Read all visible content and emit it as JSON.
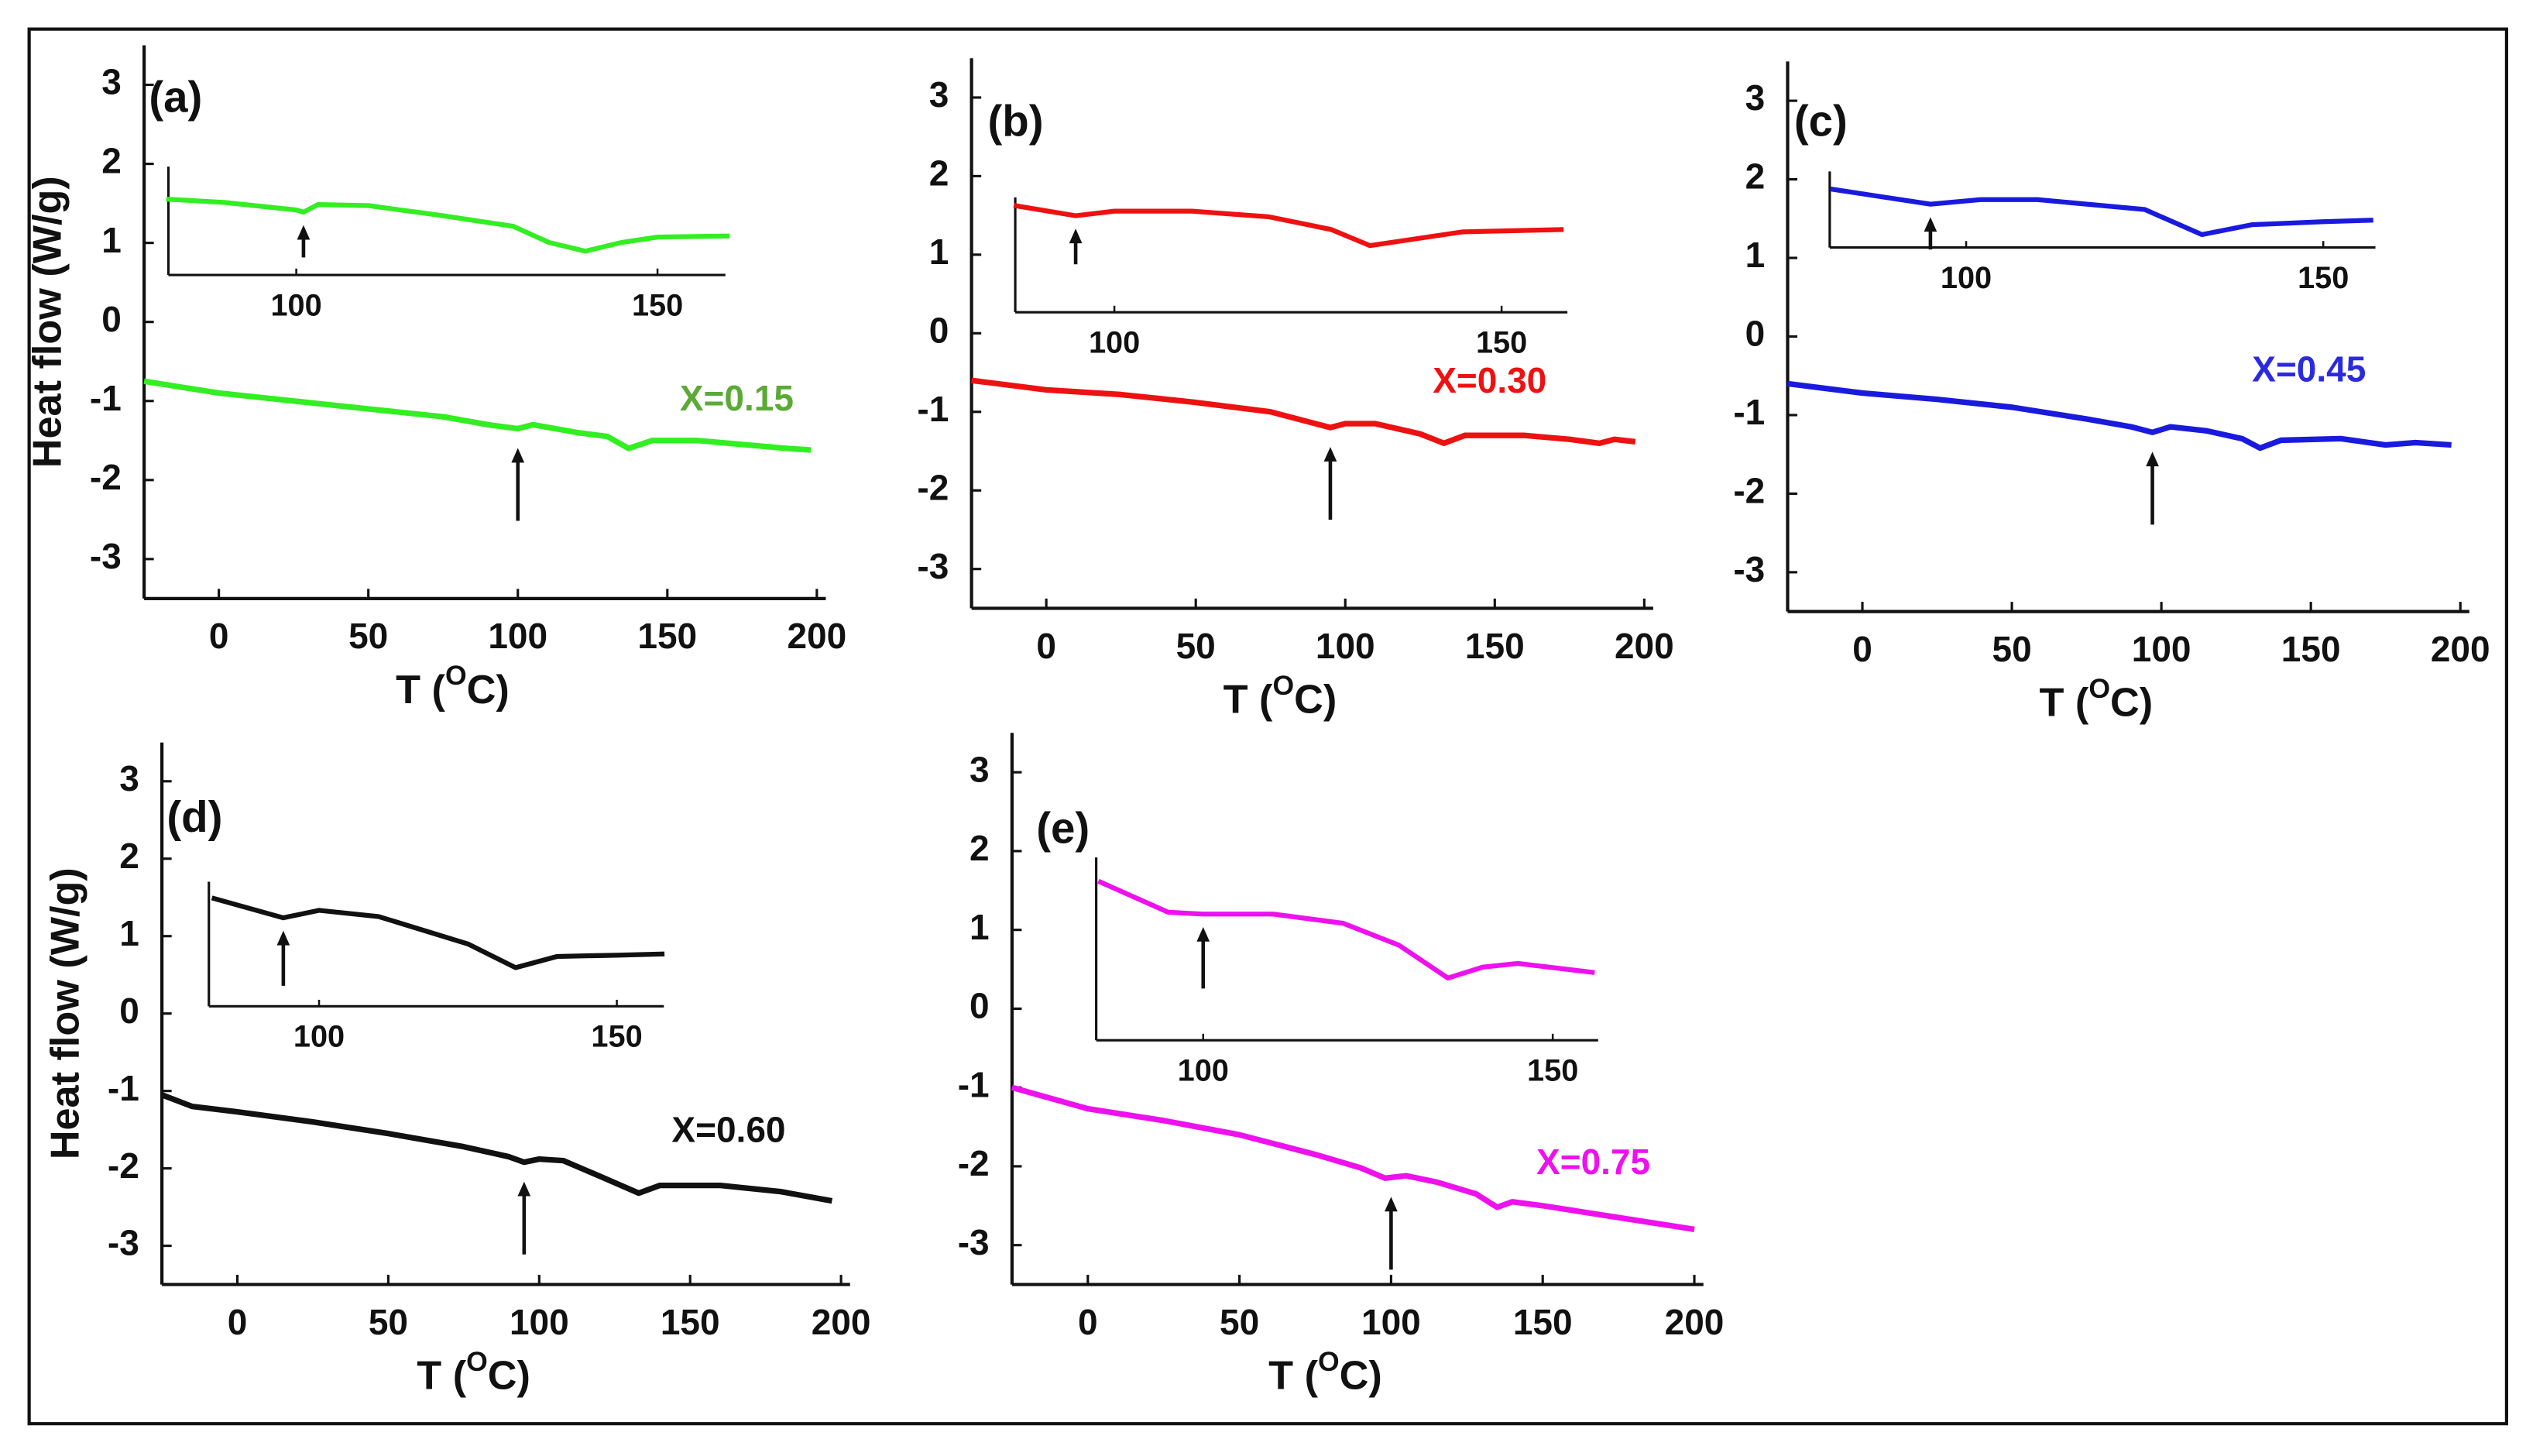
{
  "chart_data": [
    {
      "type": "line",
      "label": "(a)",
      "annotation": "X=0.15",
      "annotation_color": "#5aaa35",
      "y_label": "Heat flow (W/g)",
      "x_label": [
        "T (",
        "O",
        "C)"
      ],
      "xlim": [
        -25,
        203
      ],
      "ylim": [
        -3.5,
        3.5
      ],
      "xticks": [
        0,
        50,
        100,
        150,
        200
      ],
      "yticks": [
        -3,
        -2,
        -1,
        0,
        1,
        2,
        3
      ],
      "series": [
        {
          "color": "#33ee22",
          "x": [
            -25,
            0,
            25,
            50,
            75,
            90,
            100,
            105,
            120,
            130,
            137,
            145,
            160,
            175,
            190,
            198
          ],
          "values": [
            -0.75,
            -0.9,
            -1.0,
            -1.1,
            -1.2,
            -1.3,
            -1.35,
            -1.3,
            -1.4,
            -1.45,
            -1.6,
            -1.5,
            -1.5,
            -1.55,
            -1.6,
            -1.62
          ]
        }
      ],
      "marker_x": 100,
      "inset": {
        "xlim": [
          82.3,
          159.4
        ],
        "ylim": [
          0,
          1
        ],
        "xticks": [
          100,
          150
        ],
        "x": [
          82,
          90,
          100,
          101,
          103,
          110,
          120,
          130,
          135,
          140,
          145,
          150,
          160
        ],
        "values": [
          0.7,
          0.67,
          0.6,
          0.58,
          0.65,
          0.64,
          0.55,
          0.45,
          0.3,
          0.22,
          0.3,
          0.35,
          0.36
        ],
        "marker_x": 101
      }
    },
    {
      "type": "line",
      "label": "(b)",
      "annotation": "X=0.30",
      "annotation_color": "#ee1111",
      "x_label": [
        "T (",
        "O",
        "C)"
      ],
      "xlim": [
        -25,
        203
      ],
      "ylim": [
        -3.5,
        3.5
      ],
      "xticks": [
        0,
        50,
        100,
        150,
        200
      ],
      "yticks": [
        -3,
        -2,
        -1,
        0,
        1,
        2,
        3
      ],
      "series": [
        {
          "color": "#ee1111",
          "x": [
            -25,
            0,
            25,
            50,
            75,
            90,
            95,
            100,
            110,
            125,
            133,
            140,
            160,
            175,
            185,
            190,
            197
          ],
          "values": [
            -0.6,
            -0.72,
            -0.78,
            -0.88,
            -1.0,
            -1.15,
            -1.2,
            -1.15,
            -1.15,
            -1.28,
            -1.4,
            -1.3,
            -1.3,
            -1.35,
            -1.4,
            -1.35,
            -1.38
          ]
        }
      ],
      "marker_x": 95,
      "inset": {
        "xlim": [
          87.2,
          158.5
        ],
        "ylim": [
          0,
          1
        ],
        "xticks": [
          100,
          150
        ],
        "x": [
          87,
          95,
          100,
          110,
          120,
          128,
          133,
          137,
          145,
          158
        ],
        "values": [
          0.93,
          0.84,
          0.88,
          0.88,
          0.83,
          0.72,
          0.58,
          0.62,
          0.7,
          0.72
        ],
        "marker_x": 95
      }
    },
    {
      "type": "line",
      "label": "(c)",
      "annotation": "X=0.45",
      "annotation_color": "#2a2ae0",
      "x_label": [
        "T (",
        "O",
        "C)"
      ],
      "xlim": [
        -25,
        203
      ],
      "ylim": [
        -3.5,
        3.5
      ],
      "xticks": [
        0,
        50,
        100,
        150,
        200
      ],
      "yticks": [
        -3,
        -2,
        -1,
        0,
        1,
        2,
        3
      ],
      "series": [
        {
          "color": "#1a1adf",
          "x": [
            -25,
            0,
            25,
            50,
            75,
            90,
            97,
            103,
            115,
            127,
            133,
            140,
            160,
            175,
            185,
            197
          ],
          "values": [
            -0.6,
            -0.72,
            -0.8,
            -0.9,
            -1.05,
            -1.15,
            -1.22,
            -1.15,
            -1.2,
            -1.3,
            -1.42,
            -1.32,
            -1.3,
            -1.38,
            -1.35,
            -1.38
          ]
        }
      ],
      "marker_x": 97,
      "inset": {
        "xlim": [
          80.9,
          157.3
        ],
        "ylim": [
          0,
          1
        ],
        "xticks": [
          100,
          150
        ],
        "x": [
          81,
          95,
          102,
          110,
          125,
          133,
          140,
          150,
          157
        ],
        "values": [
          0.77,
          0.57,
          0.63,
          0.63,
          0.5,
          0.17,
          0.3,
          0.34,
          0.36
        ],
        "marker_x": 95
      }
    },
    {
      "type": "line",
      "label": "(d)",
      "annotation": "X=0.60",
      "annotation_color": "#111111",
      "y_label": "Heat flow (W/g)",
      "x_label": [
        "T (",
        "O",
        "C)"
      ],
      "xlim": [
        -25,
        203
      ],
      "ylim": [
        -3.5,
        3.5
      ],
      "xticks": [
        0,
        50,
        100,
        150,
        200
      ],
      "yticks": [
        -3,
        -2,
        -1,
        0,
        1,
        2,
        3
      ],
      "series": [
        {
          "color": "#111111",
          "x": [
            -25,
            -15,
            0,
            25,
            50,
            75,
            90,
            95,
            100,
            108,
            120,
            133,
            140,
            160,
            180,
            197
          ],
          "values": [
            -1.05,
            -1.2,
            -1.27,
            -1.4,
            -1.55,
            -1.72,
            -1.85,
            -1.92,
            -1.88,
            -1.9,
            -2.1,
            -2.32,
            -2.22,
            -2.22,
            -2.3,
            -2.42
          ]
        }
      ],
      "marker_x": 95,
      "inset": {
        "xlim": [
          81.5,
          157.9
        ],
        "ylim": [
          0,
          1
        ],
        "xticks": [
          100,
          150
        ],
        "x": [
          82,
          94,
          100,
          110,
          125,
          133,
          140,
          150,
          158
        ],
        "values": [
          0.87,
          0.71,
          0.77,
          0.72,
          0.5,
          0.31,
          0.4,
          0.41,
          0.42
        ],
        "marker_x": 94
      }
    },
    {
      "type": "line",
      "label": "(e)",
      "annotation": "X=0.75",
      "annotation_color": "#ee11ee",
      "x_label": [
        "T (",
        "O",
        "C)"
      ],
      "xlim": [
        -25,
        203
      ],
      "ylim": [
        -3.5,
        3.5
      ],
      "xticks": [
        0,
        50,
        100,
        150,
        200
      ],
      "yticks": [
        -3,
        -2,
        -1,
        0,
        1,
        2,
        3
      ],
      "series": [
        {
          "color": "#ee11ee",
          "x": [
            -25,
            0,
            25,
            50,
            75,
            90,
            98,
            105,
            115,
            128,
            135,
            140,
            150,
            175,
            200
          ],
          "values": [
            -1.0,
            -1.27,
            -1.42,
            -1.6,
            -1.85,
            -2.02,
            -2.15,
            -2.12,
            -2.2,
            -2.35,
            -2.52,
            -2.45,
            -2.5,
            -2.65,
            -2.8
          ]
        }
      ],
      "marker_x": 100,
      "inset": {
        "xlim": [
          84.7,
          156.5
        ],
        "ylim": [
          0,
          1
        ],
        "xticks": [
          100,
          150
        ],
        "x": [
          85,
          95,
          100,
          110,
          120,
          128,
          135,
          140,
          145,
          156
        ],
        "values": [
          0.87,
          0.7,
          0.69,
          0.69,
          0.64,
          0.52,
          0.34,
          0.4,
          0.42,
          0.37
        ],
        "marker_x": 100
      }
    }
  ]
}
